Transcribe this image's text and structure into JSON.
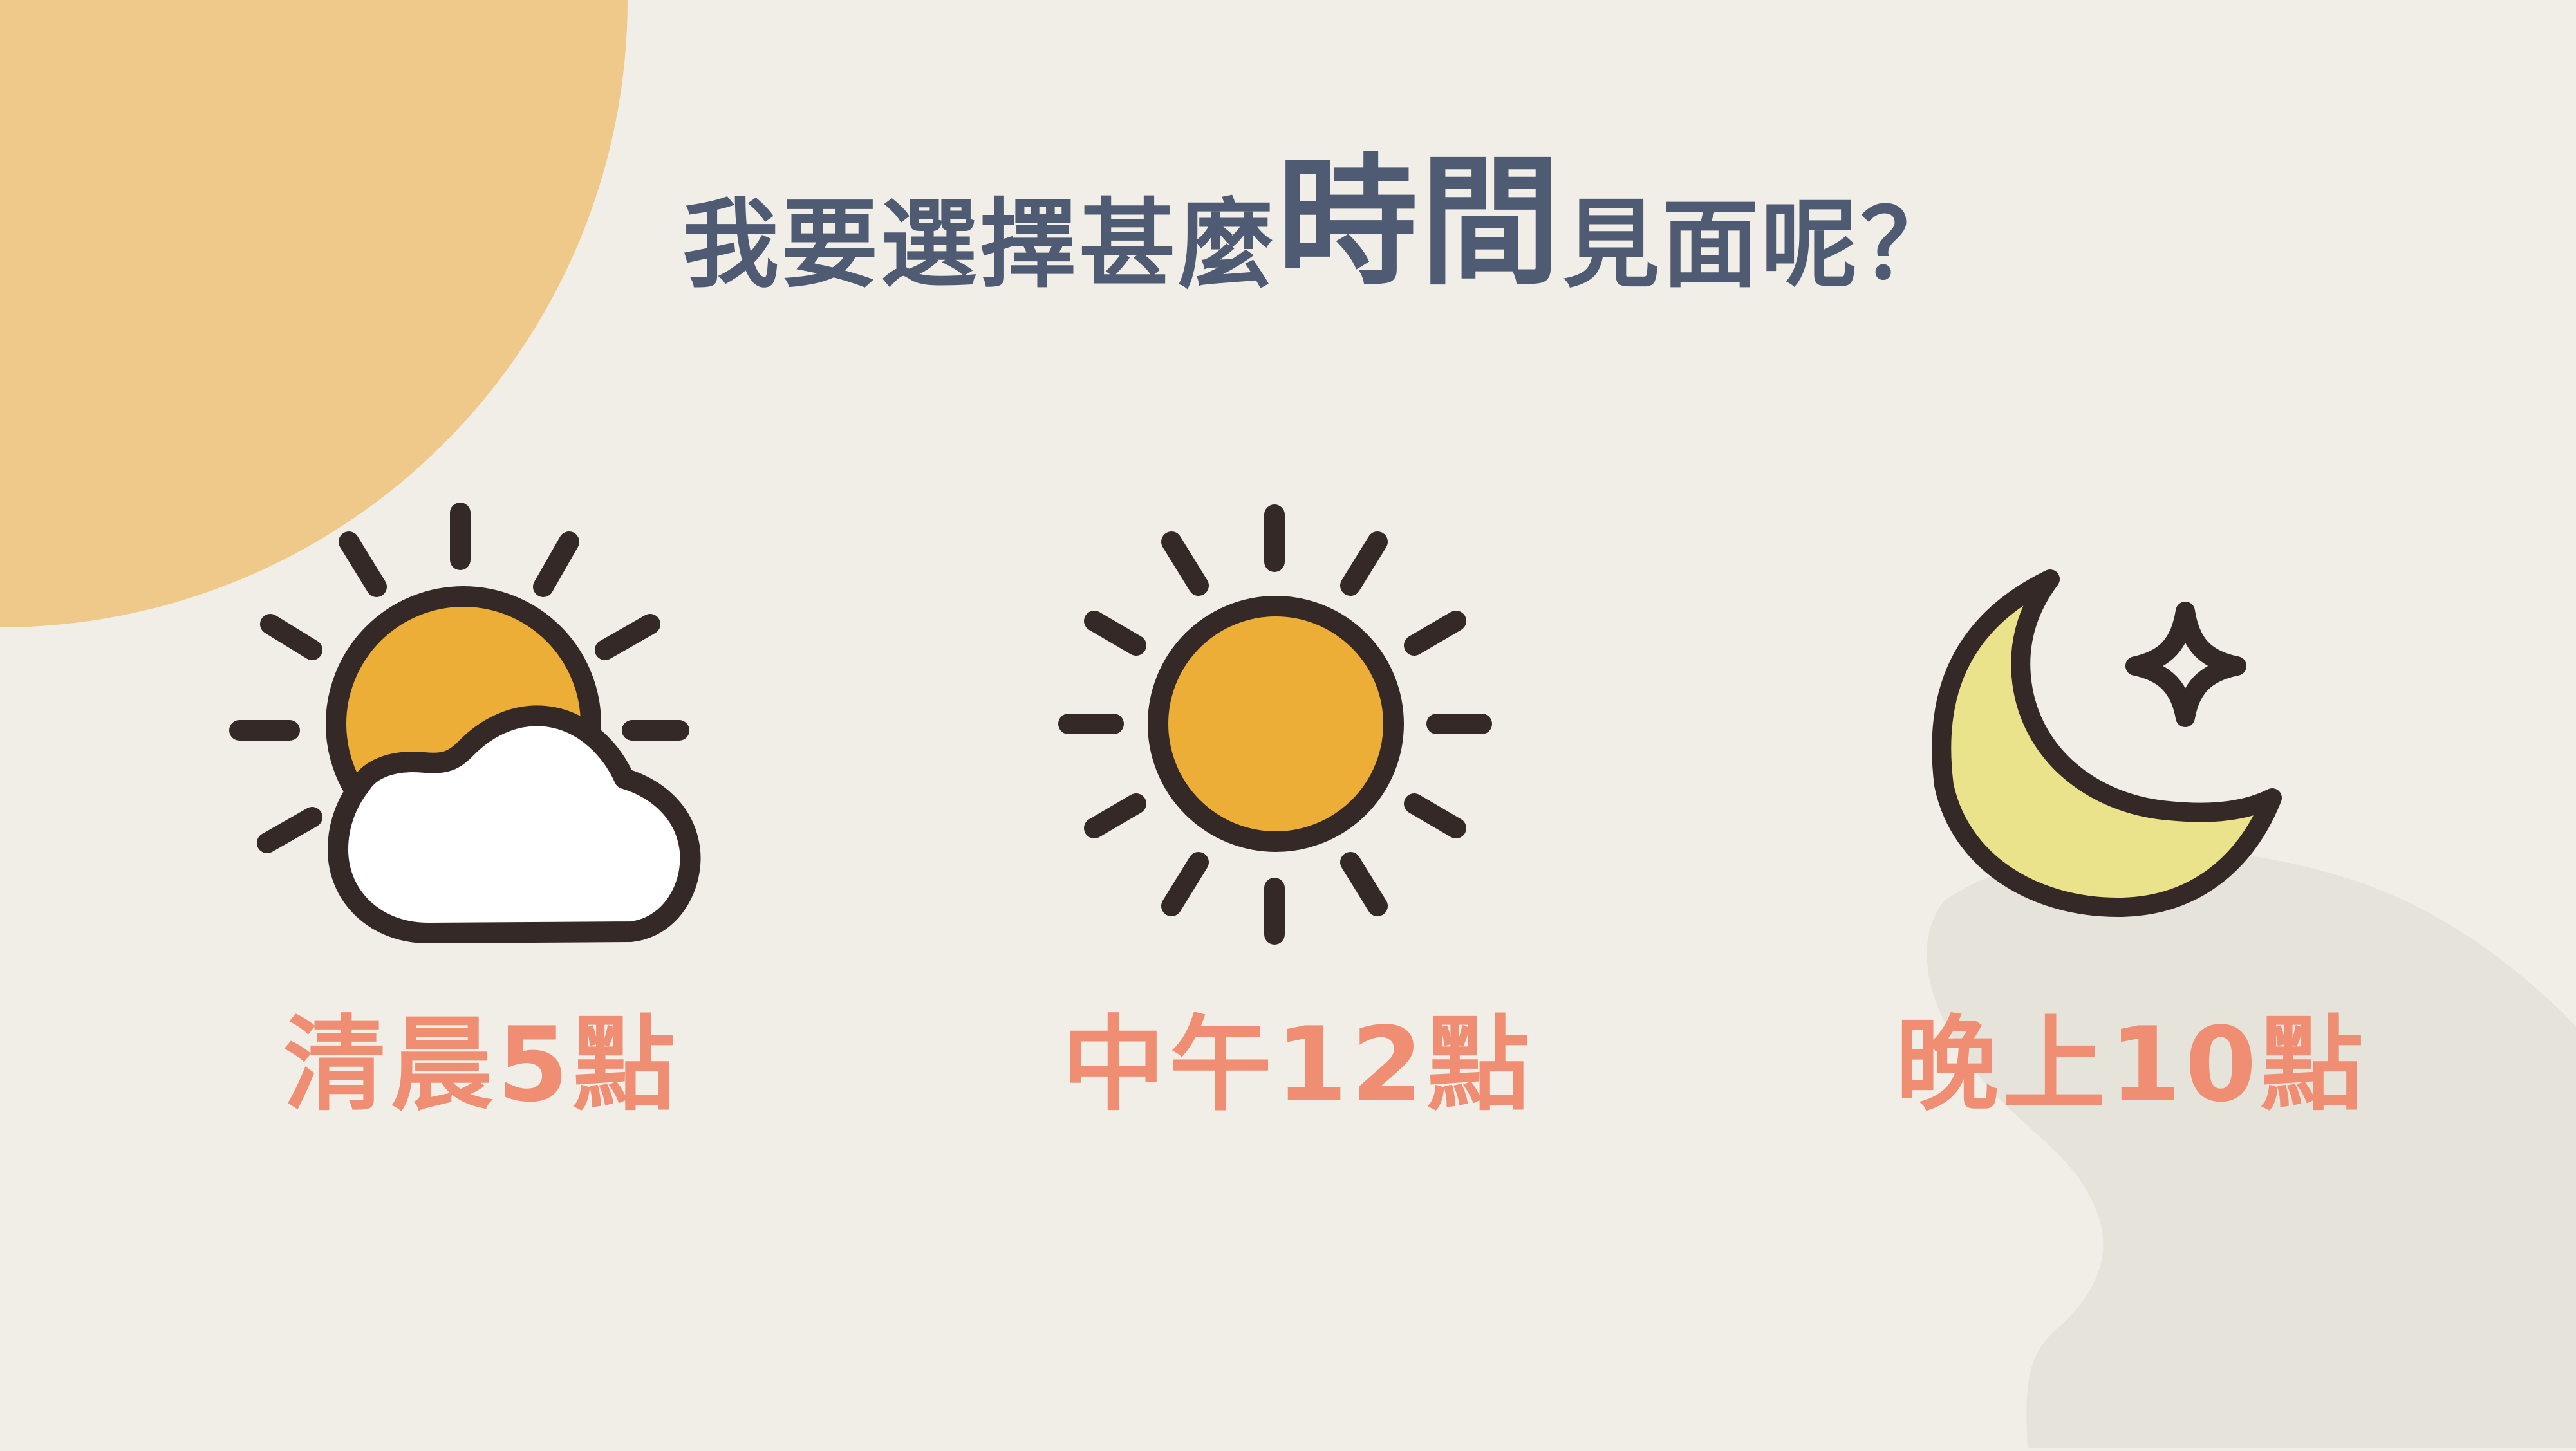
{
  "title": {
    "prefix": "我要選擇甚麼",
    "emphasis": "時間",
    "suffix": "見面呢？"
  },
  "options": [
    {
      "label": "清晨5點",
      "icon": "sun-behind-cloud-icon"
    },
    {
      "label": "中午12點",
      "icon": "sun-icon"
    },
    {
      "label": "晚上10點",
      "icon": "crescent-moon-with-star-icon"
    }
  ],
  "colors": {
    "background": "#f1eee8",
    "corner_circle": "#efc98a",
    "ground_blob": "#e6e3db",
    "outline": "#342926",
    "sun": "#ecae36",
    "cloud": "#ffffff",
    "moon": "#ebe28c",
    "title_text": "#4f5a73",
    "label_text": "#ef8e73"
  }
}
